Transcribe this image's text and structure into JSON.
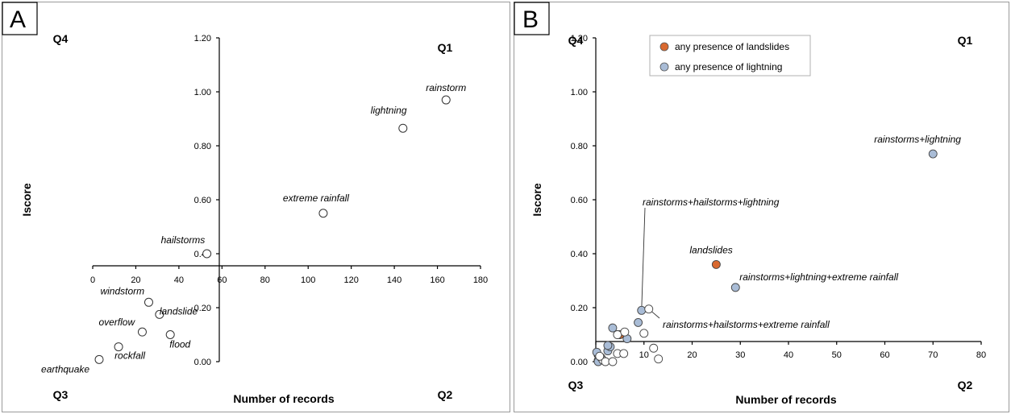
{
  "chart_data": [
    {
      "panel": "A",
      "type": "scatter",
      "xlabel": "Number of records",
      "ylabel": "Iscore",
      "xlim": [
        0,
        180
      ],
      "ylim": [
        0,
        1.2
      ],
      "x_ticks": [
        "0",
        "20",
        "40",
        "60",
        "80",
        "100",
        "120",
        "140",
        "160",
        "180"
      ],
      "y_ticks": [
        "0.00",
        "0.20",
        "0.40",
        "0.60",
        "0.80",
        "1.00",
        "1.20"
      ],
      "quadrants": [
        "Q1",
        "Q2",
        "Q3",
        "Q4"
      ],
      "points": [
        {
          "label": "rainstorm",
          "x": 164,
          "y": 0.97
        },
        {
          "label": "lightning",
          "x": 144,
          "y": 0.865
        },
        {
          "label": "extreme rainfall",
          "x": 107,
          "y": 0.55
        },
        {
          "label": "hailstorms",
          "x": 53,
          "y": 0.4
        },
        {
          "label": "windstorm",
          "x": 26,
          "y": 0.22
        },
        {
          "label": "landslide",
          "x": 31,
          "y": 0.175
        },
        {
          "label": "overflow",
          "x": 23,
          "y": 0.11
        },
        {
          "label": "flood",
          "x": 36,
          "y": 0.1
        },
        {
          "label": "rockfall",
          "x": 12,
          "y": 0.055
        },
        {
          "label": "earthquake",
          "x": 3,
          "y": 0.008
        }
      ]
    },
    {
      "panel": "B",
      "type": "scatter",
      "xlabel": "Number of records",
      "ylabel": "Iscore",
      "xlim": [
        0,
        80
      ],
      "ylim": [
        0,
        1.2
      ],
      "x_ticks": [
        "0",
        "10",
        "20",
        "30",
        "40",
        "50",
        "60",
        "70",
        "80"
      ],
      "y_ticks": [
        "0.00",
        "0.20",
        "0.40",
        "0.60",
        "0.80",
        "1.00",
        "1.20"
      ],
      "quadrants": [
        "Q1",
        "Q2",
        "Q3",
        "Q4"
      ],
      "legend": [
        {
          "name": "any presence of landslides",
          "color": "#d9692f"
        },
        {
          "name": "any presence of lightning",
          "color": "#a9bcd6"
        }
      ],
      "labeled_points": [
        {
          "label": "rainstorms+lightning",
          "x": 70,
          "y": 0.77,
          "group": "lightning"
        },
        {
          "label": "landslides",
          "x": 25,
          "y": 0.36,
          "group": "landslides"
        },
        {
          "label": "rainstorms+lightning+extreme rainfall",
          "x": 29,
          "y": 0.275,
          "group": "lightning"
        },
        {
          "label": "rainstorms+hailstorms+lightning",
          "x": 9.5,
          "y": 0.19,
          "group": "lightning"
        },
        {
          "label": "rainstorms+hailstorms+extreme rainfall",
          "x": 11,
          "y": 0.195,
          "group": "none"
        }
      ],
      "other_points": [
        {
          "x": 5,
          "y": 0.1,
          "group": "landslides"
        },
        {
          "x": 8.8,
          "y": 0.145,
          "group": "lightning"
        },
        {
          "x": 0.2,
          "y": 0.035,
          "group": "lightning"
        },
        {
          "x": 0.5,
          "y": 0.005,
          "group": "lightning"
        },
        {
          "x": 0.5,
          "y": 0.0,
          "group": "lightning"
        },
        {
          "x": 1.1,
          "y": 0.015,
          "group": "lightning"
        },
        {
          "x": 2.5,
          "y": 0.04,
          "group": "lightning"
        },
        {
          "x": 3.0,
          "y": 0.055,
          "group": "lightning"
        },
        {
          "x": 2.5,
          "y": 0.06,
          "group": "lightning"
        },
        {
          "x": 3.5,
          "y": 0.125,
          "group": "lightning"
        },
        {
          "x": 6.5,
          "y": 0.085,
          "group": "lightning"
        },
        {
          "x": 4.5,
          "y": 0.1,
          "group": "none"
        },
        {
          "x": 6.0,
          "y": 0.11,
          "group": "none"
        },
        {
          "x": 10,
          "y": 0.105,
          "group": "none"
        },
        {
          "x": 12,
          "y": 0.05,
          "group": "none"
        },
        {
          "x": 13,
          "y": 0.01,
          "group": "none"
        },
        {
          "x": 4.5,
          "y": 0.03,
          "group": "none"
        },
        {
          "x": 5.8,
          "y": 0.03,
          "group": "none"
        },
        {
          "x": 1.5,
          "y": 0.005,
          "group": "none"
        },
        {
          "x": 2.0,
          "y": 0.0,
          "group": "none"
        },
        {
          "x": 3.5,
          "y": 0.0,
          "group": "none"
        },
        {
          "x": 0.8,
          "y": 0.02,
          "group": "none"
        }
      ]
    }
  ],
  "panels": {
    "A": {
      "tag": "A"
    },
    "B": {
      "tag": "B"
    }
  },
  "colors": {
    "landslides": "#d9692f",
    "lightning": "#a9bcd6",
    "none": "#ffffff",
    "frame": "#9a9a9a"
  }
}
